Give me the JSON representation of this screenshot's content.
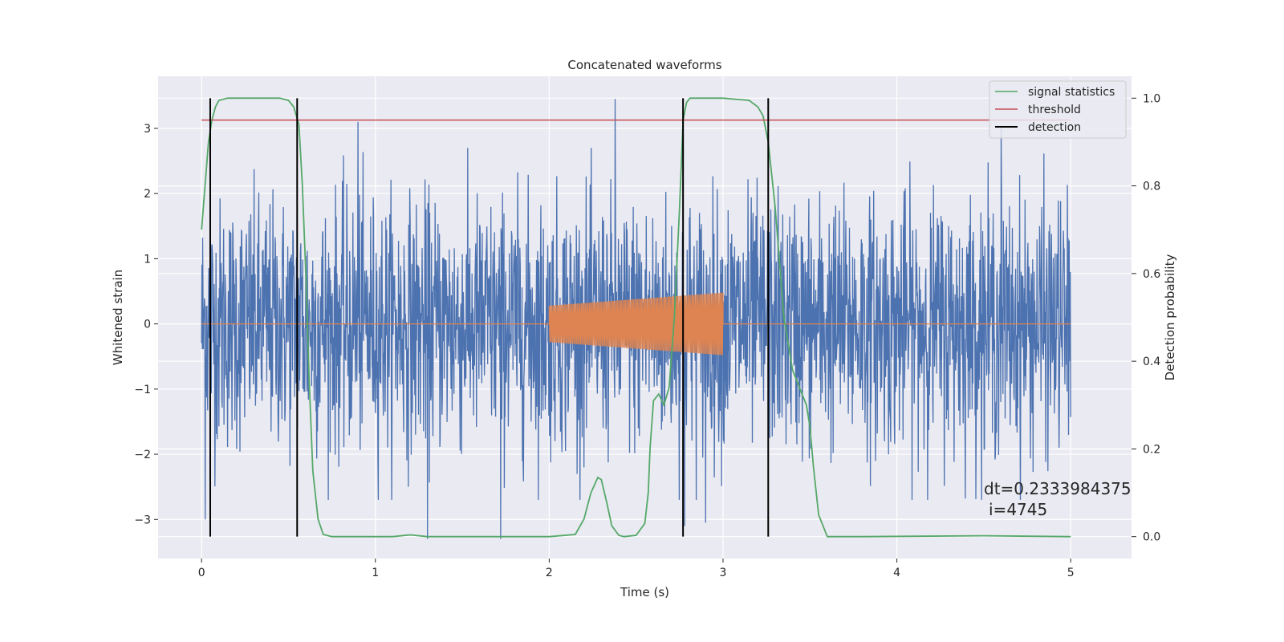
{
  "chart_data": {
    "type": "line",
    "title": "Concatenated waveforms",
    "xlabel": "Time (s)",
    "ylabel": "Whitened strain",
    "ylabel_right": "Detection probability",
    "xlim": [
      -0.25,
      5.35
    ],
    "ylim": [
      -3.6,
      3.8
    ],
    "ylim_right": [
      -0.05,
      1.05
    ],
    "x_ticks": [
      0,
      1,
      2,
      3,
      4,
      5
    ],
    "x_tick_labels": [
      "0",
      "1",
      "2",
      "3",
      "4",
      "5"
    ],
    "y_ticks": [
      -3,
      -2,
      -1,
      0,
      1,
      2,
      3
    ],
    "y_tick_labels": [
      "−3",
      "−2",
      "−1",
      "0",
      "1",
      "2",
      "3"
    ],
    "y_right_ticks": [
      0.0,
      0.2,
      0.4,
      0.6,
      0.8,
      1.0
    ],
    "y_right_tick_labels": [
      "0.0",
      "0.2",
      "0.4",
      "0.6",
      "0.8",
      "1.0"
    ],
    "grid": true,
    "legend_position": "top-right",
    "colors": {
      "background": "#eaeaf2",
      "grid": "#ffffff",
      "strain": "#4c72b0",
      "injected": "#dd8452",
      "signal_statistics": "#55a868",
      "threshold": "#c44e52",
      "detection": "#000000"
    },
    "series": [
      {
        "name": "signal statistics",
        "axis": "right",
        "x": [
          0,
          0.02,
          0.04,
          0.06,
          0.08,
          0.1,
          0.15,
          0.3,
          0.45,
          0.5,
          0.53,
          0.56,
          0.58,
          0.6,
          0.62,
          0.64,
          0.67,
          0.7,
          0.75,
          0.9,
          1.1,
          1.2,
          1.3,
          1.6,
          2.0,
          2.15,
          2.2,
          2.24,
          2.28,
          2.3,
          2.33,
          2.36,
          2.4,
          2.43,
          2.5,
          2.55,
          2.57,
          2.58,
          2.6,
          2.63,
          2.66,
          2.69,
          2.72,
          2.75,
          2.77,
          2.79,
          2.81,
          2.85,
          3.0,
          3.15,
          3.2,
          3.23,
          3.26,
          3.3,
          3.35,
          3.4,
          3.45,
          3.48,
          3.5,
          3.52,
          3.55,
          3.6,
          3.8,
          4.5,
          5.0
        ],
        "y": [
          0.7,
          0.8,
          0.9,
          0.95,
          0.98,
          0.995,
          1.0,
          1.0,
          1.0,
          0.995,
          0.98,
          0.94,
          0.8,
          0.6,
          0.35,
          0.15,
          0.04,
          0.005,
          0.0,
          0.0,
          0.0,
          0.004,
          0.0,
          0.0,
          0.0,
          0.005,
          0.04,
          0.1,
          0.135,
          0.13,
          0.08,
          0.025,
          0.003,
          0.0,
          0.003,
          0.03,
          0.1,
          0.2,
          0.31,
          0.325,
          0.3,
          0.34,
          0.5,
          0.75,
          0.95,
          0.99,
          1.0,
          1.0,
          1.0,
          0.995,
          0.98,
          0.96,
          0.9,
          0.75,
          0.5,
          0.38,
          0.33,
          0.3,
          0.25,
          0.16,
          0.05,
          0.0,
          0.0,
          0.002,
          0.0
        ]
      },
      {
        "name": "threshold",
        "axis": "right",
        "x": [
          0,
          5
        ],
        "y": [
          0.95,
          0.95
        ]
      },
      {
        "name": "detection",
        "axis": "right",
        "type": "vlines",
        "x": [
          0.05,
          0.55,
          2.77,
          3.26
        ],
        "ymin": 0.0,
        "ymax": 1.0
      }
    ],
    "whitened_strain": {
      "axis": "left",
      "x_range": [
        0,
        5
      ],
      "core_band": [
        -0.6,
        0.75
      ],
      "typical_peak_range": [
        -2.5,
        2.5
      ],
      "extremes": [
        {
          "x": 0.02,
          "y": 2.95
        },
        {
          "x": 0.02,
          "y": -3.0
        },
        {
          "x": 0.9,
          "y": 3.1
        },
        {
          "x": 1.3,
          "y": -3.3
        },
        {
          "x": 1.72,
          "y": -3.3
        },
        {
          "x": 2.38,
          "y": 3.45
        },
        {
          "x": 2.78,
          "y": -3.1
        },
        {
          "x": 2.9,
          "y": -3.05
        },
        {
          "x": 4.6,
          "y": 3.0
        }
      ]
    },
    "injected_waveform": {
      "axis": "left",
      "x_range": [
        2.0,
        3.0
      ],
      "amplitude_start": 0.28,
      "amplitude_end": 0.48,
      "baseline": 0.0
    },
    "annotations": [
      "dt=0.2333984375",
      "i=4745"
    ]
  }
}
